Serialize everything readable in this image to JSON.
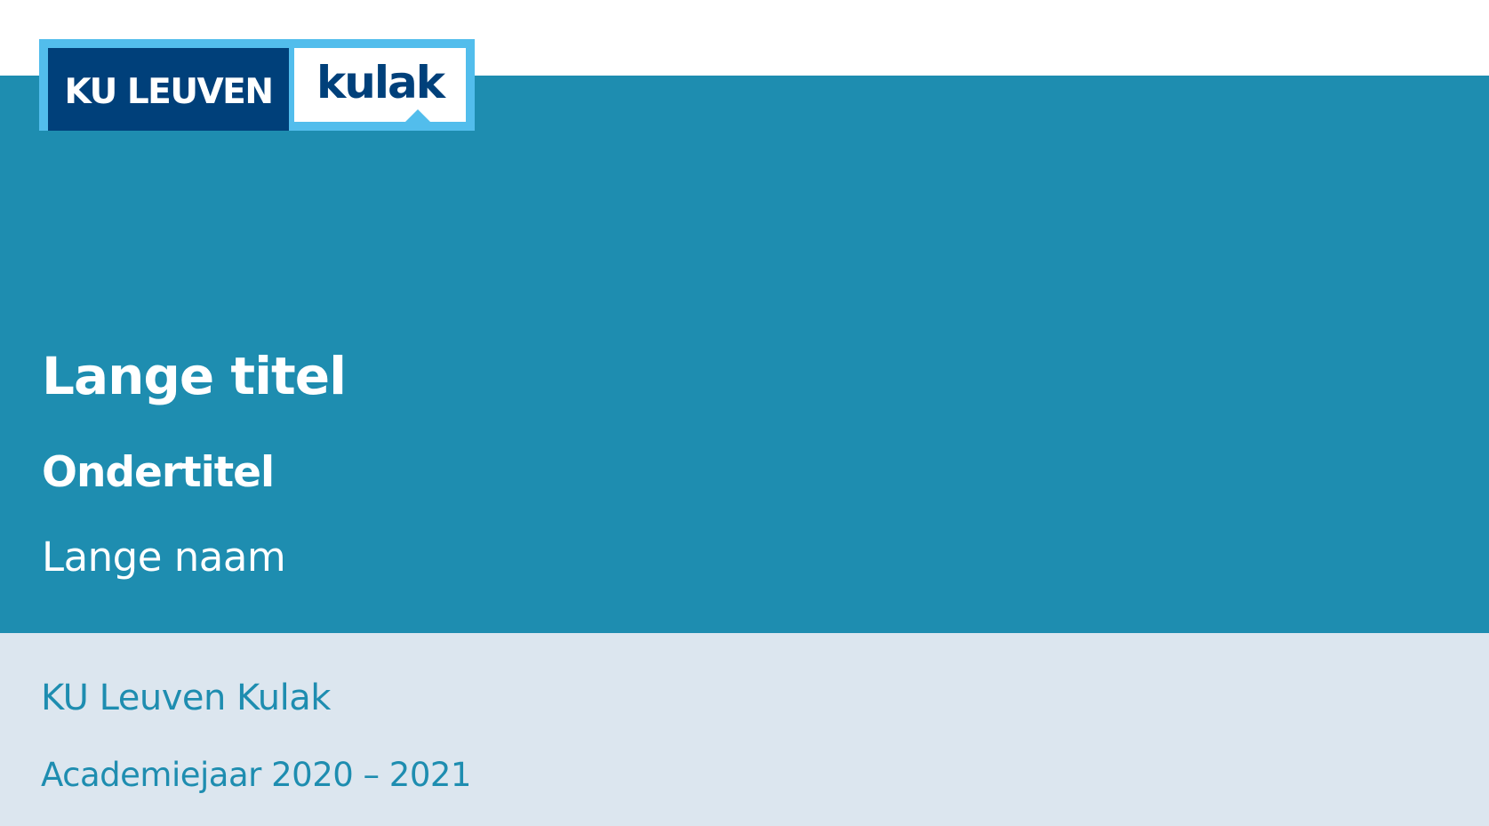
{
  "logo": {
    "left_text": "KU LEUVEN",
    "right_text": "kulak"
  },
  "slide": {
    "title": "Lange titel",
    "subtitle": "Ondertitel",
    "author": "Lange naam",
    "institute": "KU Leuven Kulak",
    "date": "Academiejaar 2020 – 2021"
  },
  "colors": {
    "main_band": "#1e8db0",
    "footer_band": "#dce6ef",
    "logo_dark_blue": "#00407a",
    "logo_light_blue": "#52bdec",
    "title_text": "#ffffff",
    "footer_text": "#1e8db0"
  }
}
